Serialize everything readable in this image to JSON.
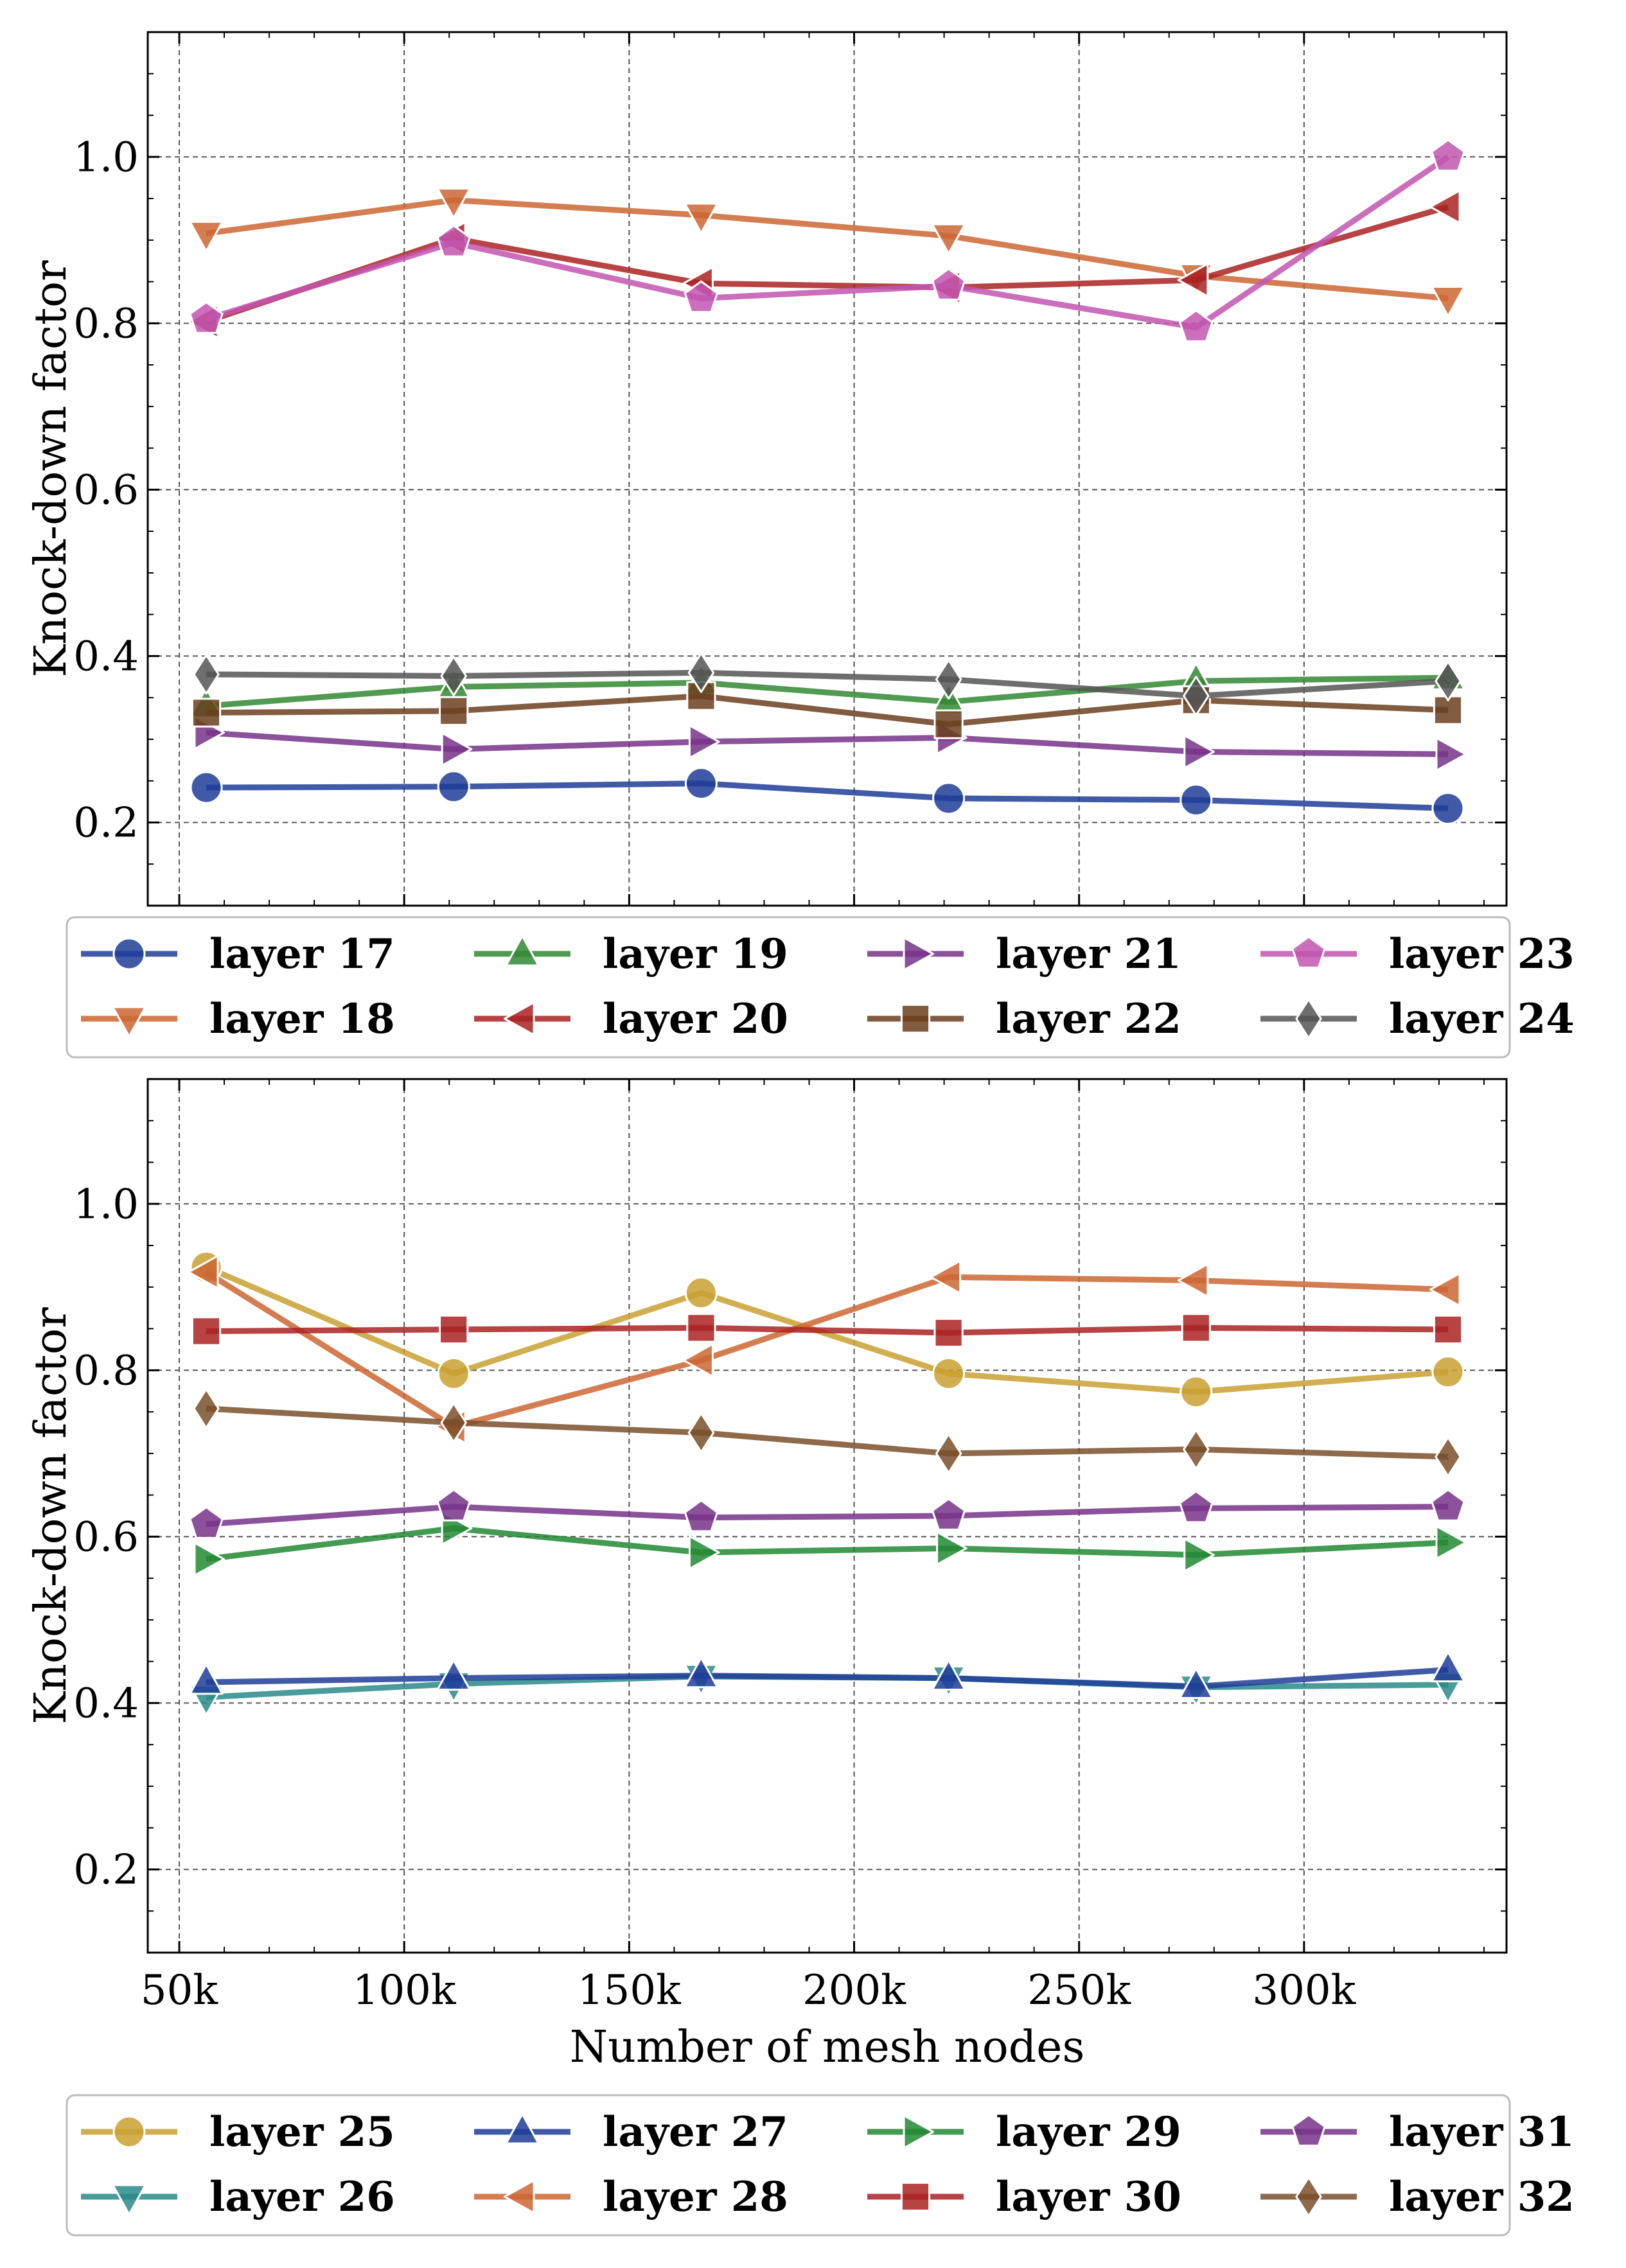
{
  "chart_data": [
    {
      "type": "line",
      "title": "",
      "xlabel": "",
      "ylabel": "Knock-down factor",
      "xlim": [
        43000,
        345000
      ],
      "ylim": [
        0.1,
        1.15
      ],
      "grid": true,
      "x_tick_labels": [
        "",
        "",
        "",
        "",
        "",
        ""
      ],
      "y_ticks": [
        0.2,
        0.4,
        0.6,
        0.8,
        1.0
      ],
      "y_tick_labels": [
        "0.2",
        "0.4",
        "0.6",
        "0.8",
        "1.0"
      ],
      "x": [
        56000,
        111000,
        166000,
        221000,
        276000,
        332000
      ],
      "legend_position": "below",
      "series": [
        {
          "name": "layer 17",
          "color": "#1f3d99",
          "marker": "circle",
          "values": [
            0.242,
            0.243,
            0.247,
            0.229,
            0.227,
            0.217
          ]
        },
        {
          "name": "layer 18",
          "color": "#cc6633",
          "marker": "triangle-down",
          "values": [
            0.908,
            0.948,
            0.93,
            0.905,
            0.857,
            0.83
          ]
        },
        {
          "name": "layer 19",
          "color": "#338833",
          "marker": "triangle-up",
          "values": [
            0.34,
            0.363,
            0.368,
            0.345,
            0.37,
            0.374
          ]
        },
        {
          "name": "layer 20",
          "color": "#aa2222",
          "marker": "triangle-left",
          "values": [
            0.802,
            0.902,
            0.848,
            0.843,
            0.852,
            0.94
          ]
        },
        {
          "name": "layer 21",
          "color": "#773388",
          "marker": "triangle-right",
          "values": [
            0.308,
            0.288,
            0.297,
            0.302,
            0.285,
            0.282
          ]
        },
        {
          "name": "layer 22",
          "color": "#6b3f1f",
          "marker": "square",
          "values": [
            0.332,
            0.334,
            0.352,
            0.318,
            0.347,
            0.335
          ]
        },
        {
          "name": "layer 23",
          "color": "#c255b0",
          "marker": "pentagon",
          "values": [
            0.805,
            0.897,
            0.83,
            0.845,
            0.795,
            1.0
          ]
        },
        {
          "name": "layer 24",
          "color": "#555555",
          "marker": "diamond",
          "values": [
            0.378,
            0.376,
            0.38,
            0.372,
            0.352,
            0.37
          ]
        }
      ]
    },
    {
      "type": "line",
      "title": "",
      "xlabel": "Number of mesh nodes",
      "ylabel": "Knock-down factor",
      "xlim": [
        43000,
        345000
      ],
      "ylim": [
        0.1,
        1.15
      ],
      "grid": true,
      "x_ticks": [
        50000,
        100000,
        150000,
        200000,
        250000,
        300000
      ],
      "x_tick_labels": [
        "50k",
        "100k",
        "150k",
        "200k",
        "250k",
        "300k"
      ],
      "y_ticks": [
        0.2,
        0.4,
        0.6,
        0.8,
        1.0
      ],
      "y_tick_labels": [
        "0.2",
        "0.4",
        "0.6",
        "0.8",
        "1.0"
      ],
      "x": [
        56000,
        111000,
        166000,
        221000,
        276000,
        332000
      ],
      "legend_position": "below",
      "series": [
        {
          "name": "layer 25",
          "color": "#c9a030",
          "marker": "circle",
          "values": [
            0.924,
            0.796,
            0.893,
            0.796,
            0.774,
            0.798
          ]
        },
        {
          "name": "layer 26",
          "color": "#2a8a8a",
          "marker": "triangle-down",
          "values": [
            0.407,
            0.423,
            0.432,
            0.43,
            0.419,
            0.422
          ]
        },
        {
          "name": "layer 27",
          "color": "#1f3d99",
          "marker": "triangle-up",
          "values": [
            0.425,
            0.43,
            0.433,
            0.43,
            0.42,
            0.44
          ]
        },
        {
          "name": "layer 28",
          "color": "#cc6633",
          "marker": "triangle-left",
          "values": [
            0.918,
            0.732,
            0.812,
            0.912,
            0.908,
            0.897
          ]
        },
        {
          "name": "layer 29",
          "color": "#228833",
          "marker": "triangle-right",
          "values": [
            0.573,
            0.61,
            0.581,
            0.586,
            0.578,
            0.593
          ]
        },
        {
          "name": "layer 30",
          "color": "#aa2222",
          "marker": "square",
          "values": [
            0.847,
            0.849,
            0.851,
            0.845,
            0.851,
            0.849
          ]
        },
        {
          "name": "layer 31",
          "color": "#773388",
          "marker": "pentagon",
          "values": [
            0.615,
            0.636,
            0.623,
            0.625,
            0.634,
            0.636
          ]
        },
        {
          "name": "layer 32",
          "color": "#7a4f2a",
          "marker": "diamond",
          "values": [
            0.754,
            0.737,
            0.725,
            0.7,
            0.705,
            0.696
          ]
        }
      ]
    }
  ]
}
